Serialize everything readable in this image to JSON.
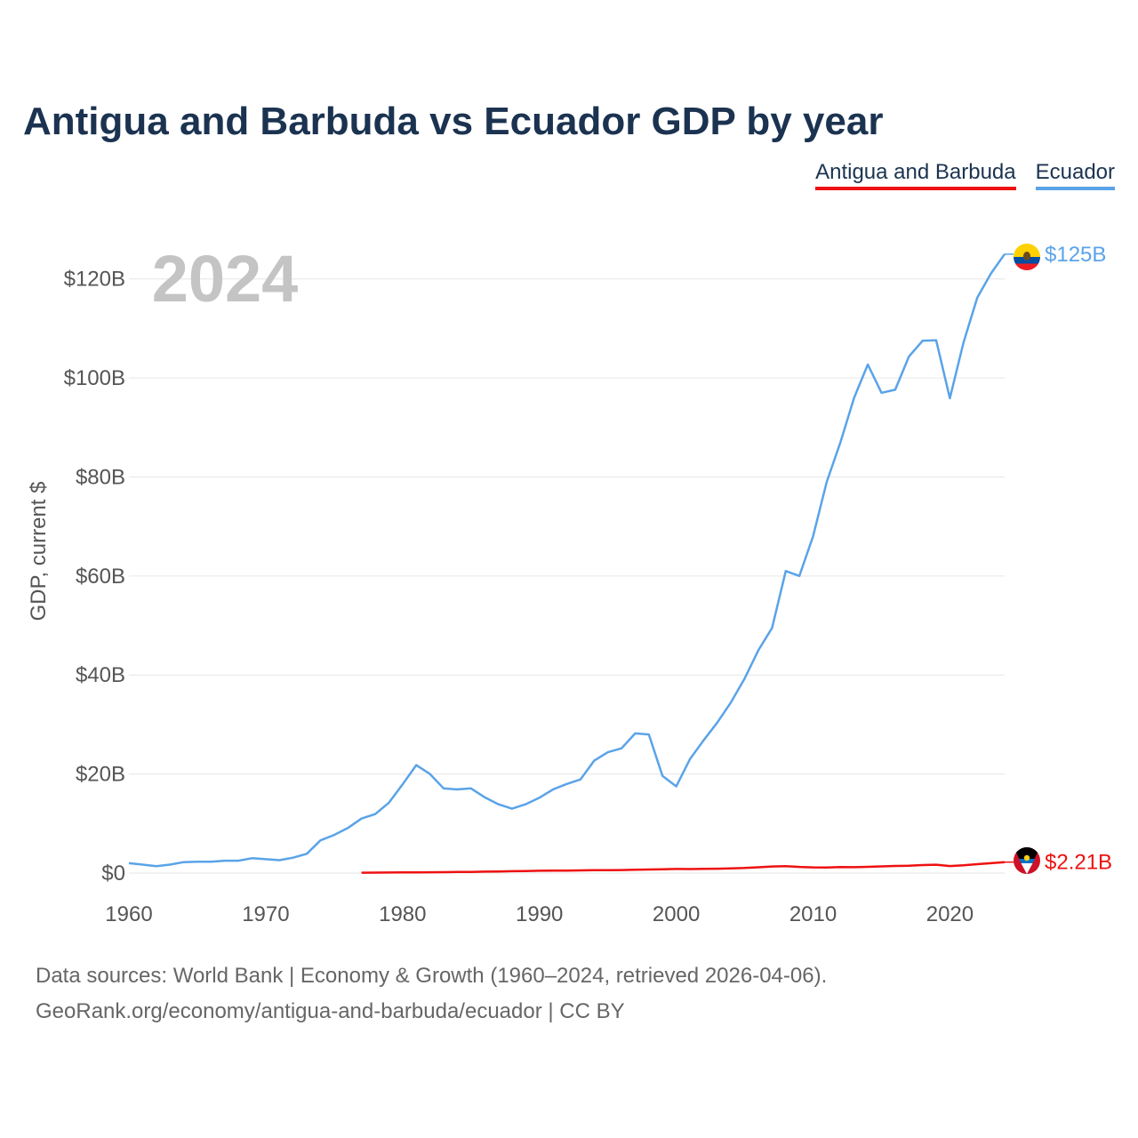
{
  "title": "Antigua and Barbuda vs Ecuador GDP by year",
  "legend": {
    "aab": "Antigua and Barbuda",
    "ecu": "Ecuador"
  },
  "year_label": "2024",
  "sources": {
    "line1": "Data sources: World Bank | Economy & Growth (1960–2024, retrieved 2026-04-06).",
    "line2": "GeoRank.org/economy/antigua-and-barbuda/ecuador | CC BY"
  },
  "colors": {
    "aab": "#ee1111",
    "ecu": "#5aa3e8",
    "grid": "#e6e6e6",
    "axis_text": "#555555",
    "year": "#c4c4c4"
  },
  "chart_data": {
    "type": "line",
    "title": "Antigua and Barbuda vs Ecuador GDP by year",
    "xlabel": "",
    "ylabel": "GDP, current $",
    "xlim": [
      1960,
      2024
    ],
    "ylim": [
      0,
      130
    ],
    "unit": "billions of current US dollars",
    "x_ticks": [
      1960,
      1970,
      1980,
      1990,
      2000,
      2010,
      2020
    ],
    "x_tick_labels": [
      "1960",
      "1970",
      "1980",
      "1990",
      "2000",
      "2010",
      "2020"
    ],
    "y_ticks": [
      0,
      20,
      40,
      60,
      80,
      100,
      120
    ],
    "y_tick_labels": [
      "$0",
      "$20B",
      "$40B",
      "$60B",
      "$80B",
      "$100B",
      "$120B"
    ],
    "grid": true,
    "legend_position": "top-right",
    "series": [
      {
        "name": "Antigua and Barbuda",
        "color": "#ee1111",
        "end_label": "$2.21B",
        "x": [
          1977,
          1978,
          1979,
          1980,
          1981,
          1982,
          1983,
          1984,
          1985,
          1986,
          1987,
          1988,
          1989,
          1990,
          1991,
          1992,
          1993,
          1994,
          1995,
          1996,
          1997,
          1998,
          1999,
          2000,
          2001,
          2002,
          2003,
          2004,
          2005,
          2006,
          2007,
          2008,
          2009,
          2010,
          2011,
          2012,
          2013,
          2014,
          2015,
          2016,
          2017,
          2018,
          2019,
          2020,
          2021,
          2022,
          2023,
          2024
        ],
        "values": [
          0.08,
          0.09,
          0.11,
          0.13,
          0.15,
          0.17,
          0.18,
          0.21,
          0.24,
          0.29,
          0.33,
          0.37,
          0.42,
          0.46,
          0.48,
          0.5,
          0.53,
          0.58,
          0.59,
          0.61,
          0.66,
          0.72,
          0.77,
          0.83,
          0.8,
          0.84,
          0.88,
          0.95,
          1.03,
          1.17,
          1.32,
          1.4,
          1.23,
          1.15,
          1.14,
          1.21,
          1.19,
          1.25,
          1.35,
          1.43,
          1.47,
          1.61,
          1.68,
          1.41,
          1.56,
          1.79,
          1.99,
          2.21
        ]
      },
      {
        "name": "Ecuador",
        "color": "#5aa3e8",
        "end_label": "$125B",
        "x": [
          1960,
          1961,
          1962,
          1963,
          1964,
          1965,
          1966,
          1967,
          1968,
          1969,
          1970,
          1971,
          1972,
          1973,
          1974,
          1975,
          1976,
          1977,
          1978,
          1979,
          1980,
          1981,
          1982,
          1983,
          1984,
          1985,
          1986,
          1987,
          1988,
          1989,
          1990,
          1991,
          1992,
          1993,
          1994,
          1995,
          1996,
          1997,
          1998,
          1999,
          2000,
          2001,
          2002,
          2003,
          2004,
          2005,
          2006,
          2007,
          2008,
          2009,
          2010,
          2011,
          2012,
          2013,
          2014,
          2015,
          2016,
          2017,
          2018,
          2019,
          2020,
          2021,
          2022,
          2023,
          2024
        ],
        "values": [
          2.0,
          1.7,
          1.4,
          1.7,
          2.2,
          2.3,
          2.3,
          2.5,
          2.5,
          3.0,
          2.8,
          2.6,
          3.1,
          3.9,
          6.6,
          7.7,
          9.1,
          11.0,
          11.9,
          14.2,
          17.9,
          21.8,
          20.0,
          17.1,
          16.9,
          17.1,
          15.3,
          13.9,
          13.0,
          13.9,
          15.2,
          16.9,
          18.0,
          18.9,
          22.7,
          24.4,
          25.2,
          28.2,
          28.0,
          19.6,
          17.5,
          23.0,
          26.8,
          30.4,
          34.5,
          39.3,
          45.0,
          49.5,
          61.0,
          60.0,
          68.0,
          79.0,
          87.0,
          96.0,
          102.7,
          97.0,
          97.6,
          104.3,
          107.5,
          107.6,
          95.9,
          107.2,
          116.2,
          121.1,
          125.0
        ]
      }
    ]
  }
}
